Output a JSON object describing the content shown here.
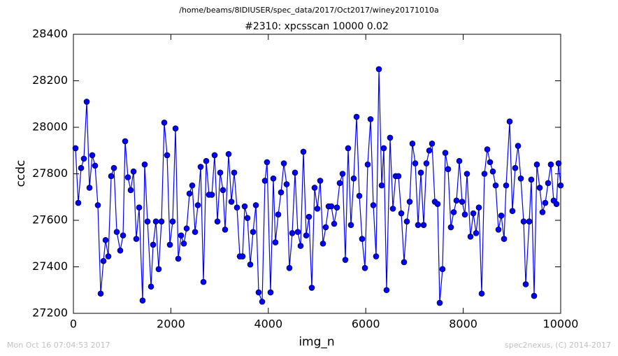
{
  "chart_data": {
    "type": "line",
    "suptitle": "/home/beams/8IDIUSER/spec_data/2017/Oct2017/winey20171010a",
    "title": "#2310: xpcsscan 10000 0.02",
    "xlabel": "img_n",
    "ylabel": "ccdc",
    "footer_left": "Mon Oct 16 07:04:53 2017",
    "footer_right": "spec2nexus, (C) 2014-2017",
    "xlim": [
      0,
      10000
    ],
    "xticks": [
      0,
      2000,
      4000,
      6000,
      8000,
      10000
    ],
    "ylim": [
      27200,
      28400
    ],
    "yticks": [
      27200,
      27400,
      27600,
      27800,
      28000,
      28200,
      28400
    ],
    "x": [
      43,
      100,
      158,
      215,
      273,
      330,
      387,
      445,
      502,
      560,
      617,
      660,
      717,
      775,
      832,
      890,
      961,
      1019,
      1062,
      1119,
      1176,
      1234,
      1291,
      1349,
      1420,
      1463,
      1521,
      1593,
      1636,
      1693,
      1750,
      1808,
      1865,
      1923,
      1980,
      2037,
      2095,
      2152,
      2210,
      2267,
      2324,
      2382,
      2439,
      2497,
      2554,
      2611,
      2669,
      2726,
      2783,
      2841,
      2898,
      2956,
      3013,
      3070,
      3113,
      3185,
      3243,
      3300,
      3357,
      3415,
      3472,
      3515,
      3572,
      3630,
      3687,
      3745,
      3802,
      3874,
      3931,
      3974,
      4046,
      4103,
      4146,
      4204,
      4261,
      4319,
      4376,
      4433,
      4491,
      4548,
      4605,
      4663,
      4720,
      4778,
      4835,
      4892,
      4950,
      5007,
      5065,
      5122,
      5179,
      5237,
      5294,
      5352,
      5409,
      5466,
      5524,
      5581,
      5638,
      5696,
      5753,
      5811,
      5868,
      5925,
      5983,
      6040,
      6098,
      6155,
      6212,
      6270,
      6327,
      6370,
      6427,
      6499,
      6557,
      6614,
      6671,
      6729,
      6786,
      6844,
      6901,
      6958,
      7016,
      7073,
      7131,
      7188,
      7245,
      7303,
      7360,
      7418,
      7475,
      7518,
      7575,
      7633,
      7690,
      7747,
      7805,
      7862,
      7920,
      7977,
      8034,
      8077,
      8149,
      8207,
      8264,
      8321,
      8379,
      8436,
      8494,
      8551,
      8608,
      8666,
      8723,
      8781,
      8838,
      8881,
      8953,
      9010,
      9067,
      9125,
      9182,
      9240,
      9283,
      9355,
      9397,
      9455,
      9512,
      9570,
      9627,
      9684,
      9742,
      9799,
      9856,
      9914,
      9957,
      10000
    ],
    "series": [
      {
        "name": "ccdc",
        "color": "#0000ff",
        "values": [
          27910,
          27675,
          27825,
          27865,
          28110,
          27740,
          27880,
          27835,
          27665,
          27285,
          27425,
          27515,
          27445,
          27790,
          27825,
          27550,
          27470,
          27535,
          27940,
          27785,
          27730,
          27810,
          27520,
          27655,
          27255,
          27840,
          27595,
          27315,
          27495,
          27595,
          27390,
          27595,
          28020,
          27880,
          27495,
          27595,
          27995,
          27435,
          27535,
          27500,
          27565,
          27715,
          27750,
          27550,
          27665,
          27830,
          27335,
          27855,
          27710,
          27710,
          27880,
          27595,
          27805,
          27730,
          27560,
          27885,
          27680,
          27805,
          27655,
          27445,
          27445,
          27660,
          27610,
          27410,
          27550,
          27665,
          27290,
          27250,
          27770,
          27850,
          27290,
          27780,
          27505,
          27625,
          27720,
          27845,
          27755,
          27395,
          27545,
          27805,
          27550,
          27490,
          27895,
          27535,
          27615,
          27310,
          27740,
          27650,
          27770,
          27500,
          27570,
          27660,
          27660,
          27585,
          27655,
          27760,
          27800,
          27430,
          27910,
          27580,
          27780,
          28045,
          27705,
          27520,
          27395,
          27840,
          28035,
          27665,
          27445,
          28250,
          27750,
          27910,
          27300,
          27955,
          27650,
          27790,
          27790,
          27630,
          27420,
          27595,
          27680,
          27930,
          27845,
          27580,
          27805,
          27580,
          27845,
          27900,
          27930,
          27680,
          27670,
          27245,
          27390,
          27890,
          27820,
          27570,
          27635,
          27685,
          27855,
          27680,
          27625,
          27800,
          27530,
          27630,
          27545,
          27655,
          27285,
          27800,
          27905,
          27850,
          27810,
          27750,
          27560,
          27620,
          27520,
          27750,
          28025,
          27640,
          27825,
          27920,
          27780,
          27595,
          27325,
          27595,
          27775,
          27275,
          27840,
          27740,
          27635,
          27675,
          27760,
          27840,
          27685,
          27670,
          27845,
          27750
        ]
      }
    ]
  }
}
